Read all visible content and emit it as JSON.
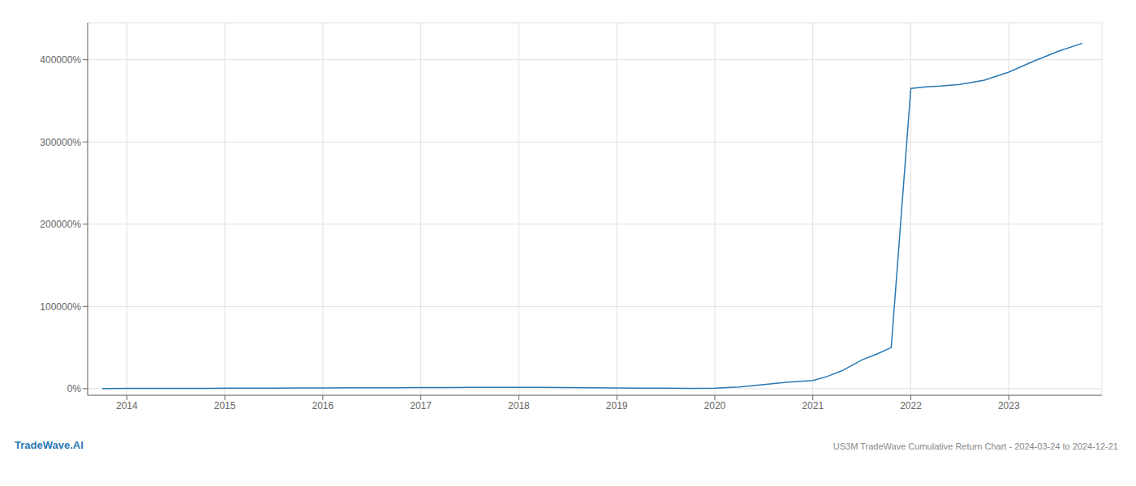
{
  "chart_data": {
    "type": "line",
    "title": "US3M TradeWave Cumulative Return Chart - 2024-03-24 to 2024-12-21",
    "annotations": [
      "TradeWave.AI"
    ],
    "color": "#2878b5",
    "grid": true,
    "x": [
      2013.75,
      2014.0,
      2014.25,
      2014.5,
      2014.75,
      2015.0,
      2015.25,
      2015.5,
      2015.75,
      2016.0,
      2016.25,
      2016.5,
      2016.75,
      2017.0,
      2017.25,
      2017.5,
      2017.75,
      2018.0,
      2018.25,
      2018.5,
      2018.75,
      2019.0,
      2019.25,
      2019.5,
      2019.75,
      2020.0,
      2020.25,
      2020.5,
      2020.75,
      2021.0,
      2021.15,
      2021.3,
      2021.5,
      2021.65,
      2021.8,
      2022.0,
      2022.15,
      2022.3,
      2022.5,
      2022.75,
      2023.0,
      2023.25,
      2023.5,
      2023.75
    ],
    "values": [
      200,
      250,
      300,
      350,
      400,
      500,
      600,
      700,
      800,
      900,
      1000,
      1100,
      1200,
      1300,
      1400,
      1500,
      1600,
      1700,
      1500,
      1300,
      1100,
      900,
      700,
      500,
      400,
      500,
      2000,
      5000,
      8000,
      10000,
      15000,
      22000,
      35000,
      42000,
      50000,
      365000,
      367000,
      368000,
      370000,
      375000,
      385000,
      398000,
      410000,
      420000
    ],
    "xlim": [
      2013.6,
      2023.95
    ],
    "xticks": [
      2014,
      2015,
      2016,
      2017,
      2018,
      2019,
      2020,
      2021,
      2022,
      2023
    ],
    "ylim": [
      -8000,
      445000
    ],
    "yticks": [
      {
        "value": 0,
        "label": "0%"
      },
      {
        "value": 100000,
        "label": "100000%"
      },
      {
        "value": 200000,
        "label": "200000%"
      },
      {
        "value": 300000,
        "label": "300000%"
      },
      {
        "value": 400000,
        "label": "400000%"
      }
    ]
  }
}
